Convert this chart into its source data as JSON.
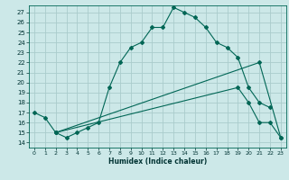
{
  "xlabel": "Humidex (Indice chaleur)",
  "background_color": "#cce8e8",
  "grid_color": "#aacccc",
  "line_color": "#006655",
  "xlim": [
    -0.5,
    23.5
  ],
  "ylim": [
    13.5,
    27.7
  ],
  "xticks": [
    0,
    1,
    2,
    3,
    4,
    5,
    6,
    7,
    8,
    9,
    10,
    11,
    12,
    13,
    14,
    15,
    16,
    17,
    18,
    19,
    20,
    21,
    22,
    23
  ],
  "yticks": [
    14,
    15,
    16,
    17,
    18,
    19,
    20,
    21,
    22,
    23,
    24,
    25,
    26,
    27
  ],
  "line1_x": [
    0,
    1,
    2,
    3,
    4,
    5,
    6,
    7,
    8,
    9,
    10,
    11,
    12,
    13,
    14,
    15,
    16,
    17,
    18,
    19,
    20,
    21,
    22
  ],
  "line1_y": [
    17,
    16.5,
    15,
    14.5,
    15,
    15.5,
    16,
    19.5,
    22,
    23.5,
    24,
    25.5,
    25.5,
    27.5,
    27,
    26.5,
    25.5,
    24,
    23.5,
    22.5,
    19.5,
    18,
    17.5
  ],
  "line2_x": [
    2,
    19,
    20,
    21,
    22,
    23
  ],
  "line2_y": [
    15,
    19.5,
    18,
    16,
    16,
    14.5
  ],
  "line3_x": [
    2,
    21,
    23
  ],
  "line3_y": [
    15,
    22,
    14.5
  ]
}
